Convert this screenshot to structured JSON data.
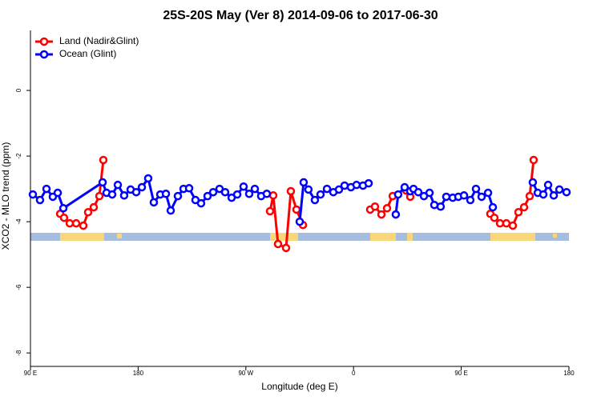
{
  "chart_data": {
    "type": "line",
    "title": "25S-20S May (Ver 8)   2014-09-06 to 2017-06-30",
    "xlabel": "Longitude (deg E)",
    "ylabel": "XCO2 - MLO trend (ppm)",
    "xlim": [
      90,
      540
    ],
    "ylim": [
      -8.41,
      1.83
    ],
    "xticks": [
      {
        "value": 90,
        "label": "90 E"
      },
      {
        "value": 180,
        "label": "180"
      },
      {
        "value": 270,
        "label": "90 W"
      },
      {
        "value": 360,
        "label": "0"
      },
      {
        "value": 450,
        "label": "90 E"
      },
      {
        "value": 540,
        "label": "180"
      }
    ],
    "yticks": [
      0,
      -2,
      -4,
      -6,
      -8
    ],
    "legend": "topleft",
    "series": [
      {
        "name": "Land (Nadir&Glint)",
        "color": "#ff0000",
        "x": [
          114.8,
          118.1,
          122.8,
          128.2,
          134.2,
          138.2,
          142.9,
          147.6,
          150.9,
          null,
          290.2,
          292.9,
          296.9,
          303.6,
          307.6,
          312.3,
          317.7,
          null,
          373.9,
          377.9,
          383.3,
          388.0,
          392.7,
          null,
          404.0,
          407.4,
          null,
          474.3,
          477.7,
          482.4,
          487.7,
          493.1,
          497.8,
          502.5,
          507.2,
          510.5
        ],
        "values": [
          -3.76,
          -3.88,
          -4.05,
          -4.05,
          -4.12,
          -3.71,
          -3.56,
          -3.22,
          -2.12,
          null,
          -3.68,
          -3.2,
          -4.68,
          -4.8,
          -3.07,
          -3.63,
          -4.1,
          null,
          -3.63,
          -3.54,
          -3.78,
          -3.59,
          -3.22,
          null,
          -3.05,
          -3.24,
          null,
          -3.76,
          -3.88,
          -4.05,
          -4.05,
          -4.12,
          -3.71,
          -3.56,
          -3.22,
          -2.12
        ]
      },
      {
        "name": "Ocean (Glint)",
        "color": "#0000ff",
        "x": [
          92.0,
          98.0,
          103.4,
          108.7,
          112.8,
          117.5,
          150.3,
          153.6,
          158.3,
          163.0,
          168.3,
          173.7,
          178.4,
          183.1,
          188.4,
          193.1,
          198.5,
          203.2,
          207.2,
          213.2,
          217.9,
          222.6,
          227.9,
          232.6,
          238.0,
          242.7,
          248.0,
          252.7,
          258.1,
          262.8,
          268.1,
          272.8,
          277.5,
          282.8,
          287.5,
          null,
          315.0,
          318.3,
          322.3,
          327.7,
          332.4,
          337.8,
          343.1,
          347.8,
          352.5,
          357.8,
          362.5,
          367.9,
          372.6,
          null,
          395.3,
          397.3,
          402.7,
          407.4,
          410.1,
          414.1,
          418.8,
          423.5,
          427.5,
          432.8,
          437.5,
          442.9,
          447.6,
          452.3,
          457.6,
          462.3,
          467.0,
          472.4,
          476.4,
          null,
          509.8,
          513.9,
          518.6,
          522.6,
          527.3,
          532.0,
          538.0
        ],
        "values": [
          -3.17,
          -3.34,
          -3.0,
          -3.24,
          -3.12,
          -3.59,
          -2.8,
          -3.12,
          -3.17,
          -2.88,
          -3.2,
          -3.02,
          -3.1,
          -2.95,
          -2.68,
          -3.41,
          -3.17,
          -3.15,
          -3.66,
          -3.22,
          -3.0,
          -2.98,
          -3.34,
          -3.44,
          -3.22,
          -3.1,
          -3.0,
          -3.1,
          -3.27,
          -3.17,
          -2.93,
          -3.15,
          -3.0,
          -3.22,
          -3.15,
          null,
          -4.0,
          -2.8,
          -3.02,
          -3.34,
          -3.17,
          -3.0,
          -3.1,
          -3.02,
          -2.9,
          -2.95,
          -2.88,
          -2.9,
          -2.83,
          null,
          -3.78,
          -3.17,
          -2.95,
          -3.07,
          -3.0,
          -3.1,
          -3.22,
          -3.12,
          -3.49,
          -3.54,
          -3.24,
          -3.27,
          -3.24,
          -3.2,
          -3.34,
          -3.0,
          -3.24,
          -3.12,
          -3.56,
          null,
          -2.8,
          -3.12,
          -3.17,
          -2.88,
          -3.2,
          -3.02,
          -3.1
        ]
      }
    ]
  }
}
